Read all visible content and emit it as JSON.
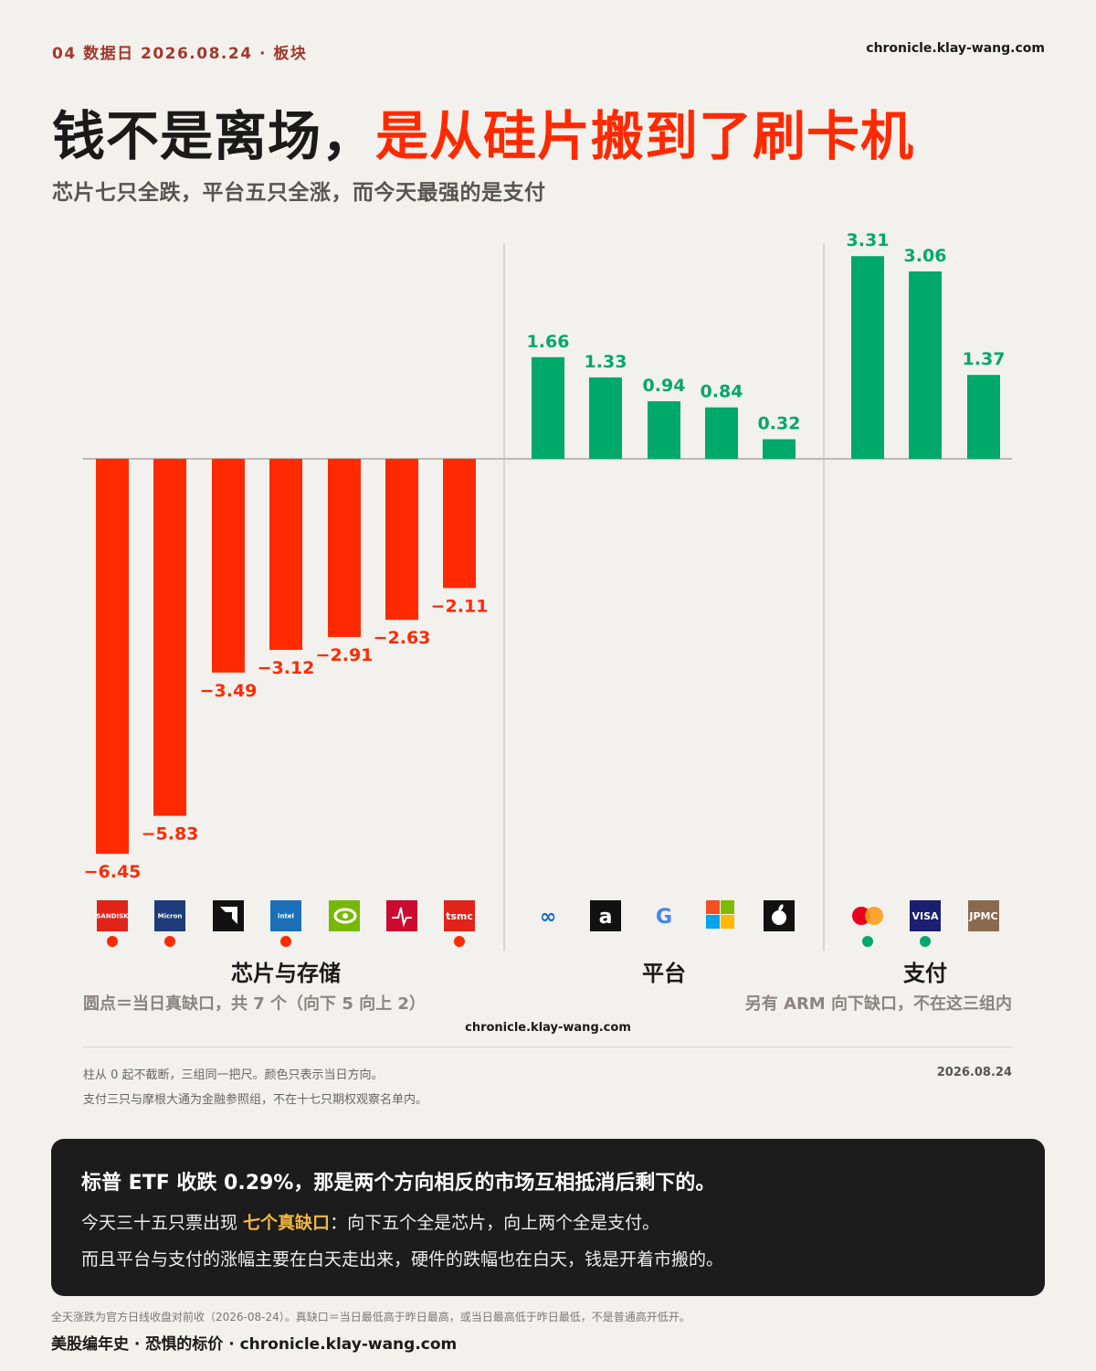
{
  "header": {
    "eyebrow": "04 数据日 2026.08.24 · 板块",
    "site": "chronicle.klay-wang.com",
    "headline_black": "钱不是离场，",
    "headline_red": "是从硅片搬到了刷卡机",
    "subtitle": "芯片七只全跌，平台五只全涨，而今天最强的是支付"
  },
  "colors": {
    "down": "#ff2a00",
    "up": "#00a86b",
    "accent": "#f2b843"
  },
  "chart_data": {
    "type": "bar",
    "groups": [
      {
        "name": "芯片与存储",
        "items": [
          {
            "ticker": "SanDisk",
            "logo_text": "SANDISK",
            "logo_bg": "#e2231a",
            "logo_fg": "#ffffff",
            "value": -6.45,
            "label": "−6.45",
            "true_gap": true
          },
          {
            "ticker": "Micron",
            "logo_text": "Micron",
            "logo_bg": "#1f3c7a",
            "logo_fg": "#ffffff",
            "value": -5.83,
            "label": "−5.83",
            "true_gap": true
          },
          {
            "ticker": "AMD",
            "logo_text": "",
            "logo_bg": "#111111",
            "logo_fg": "#ffffff",
            "value": -3.49,
            "label": "−3.49",
            "true_gap": false
          },
          {
            "ticker": "Intel",
            "logo_text": "intel",
            "logo_bg": "#1b6fb8",
            "logo_fg": "#ffffff",
            "value": -3.12,
            "label": "−3.12",
            "true_gap": true
          },
          {
            "ticker": "NVIDIA",
            "logo_text": "",
            "logo_bg": "#76b900",
            "logo_fg": "#ffffff",
            "value": -2.91,
            "label": "−2.91",
            "true_gap": false
          },
          {
            "ticker": "Broadcom",
            "logo_text": "",
            "logo_bg": "#cc092f",
            "logo_fg": "#ffffff",
            "value": -2.63,
            "label": "−2.63",
            "true_gap": false
          },
          {
            "ticker": "TSMC",
            "logo_text": "tsmc",
            "logo_bg": "#e2231a",
            "logo_fg": "#ffffff",
            "value": -2.11,
            "label": "−2.11",
            "true_gap": true
          }
        ]
      },
      {
        "name": "平台",
        "items": [
          {
            "ticker": "Meta",
            "logo_text": "∞",
            "logo_bg": "transparent",
            "logo_fg": "#0668e1",
            "value": 1.66,
            "label": "1.66",
            "true_gap": false
          },
          {
            "ticker": "Amazon",
            "logo_text": "a",
            "logo_bg": "#111111",
            "logo_fg": "#ffffff",
            "value": 1.33,
            "label": "1.33",
            "true_gap": false
          },
          {
            "ticker": "Google",
            "logo_text": "G",
            "logo_bg": "transparent",
            "logo_fg": "#4285f4",
            "value": 0.94,
            "label": "0.94",
            "true_gap": false
          },
          {
            "ticker": "Microsoft",
            "logo_text": "",
            "logo_bg": "transparent",
            "logo_fg": "#f25022",
            "value": 0.84,
            "label": "0.84",
            "true_gap": false
          },
          {
            "ticker": "Apple",
            "logo_text": "",
            "logo_bg": "#111111",
            "logo_fg": "#ffffff",
            "value": 0.32,
            "label": "0.32",
            "true_gap": false
          }
        ]
      },
      {
        "name": "支付",
        "items": [
          {
            "ticker": "Mastercard",
            "logo_text": "",
            "logo_bg": "transparent",
            "logo_fg": "#eb001b",
            "value": 3.31,
            "label": "3.31",
            "true_gap": true
          },
          {
            "ticker": "Visa",
            "logo_text": "VISA",
            "logo_bg": "#1a1f71",
            "logo_fg": "#ffffff",
            "value": 3.06,
            "label": "3.06",
            "true_gap": true
          },
          {
            "ticker": "JPMorgan",
            "logo_text": "JPMC",
            "logo_bg": "#8a6a4f",
            "logo_fg": "#ffffff",
            "value": 1.37,
            "label": "1.37",
            "true_gap": false
          }
        ]
      }
    ],
    "ylim": [
      -6.45,
      3.31
    ],
    "grid": false
  },
  "notes": {
    "left": "圆点＝当日真缺口，共 7 个（向下 5 向上 2）",
    "right": "另有 ARM 向下缺口，不在这三组内",
    "site_mid": "chronicle.klay-wang.com",
    "fine1": "柱从 0 起不截断，三组同一把尺。颜色只表示当日方向。",
    "fine2": "支付三只与摩根大通为金融参照组，不在十七只期权观察名单内。",
    "date": "2026.08.24"
  },
  "callout": {
    "line1": "标普 ETF 收跌 0.29%，那是两个方向相反的市场互相抵消后剩下的。",
    "line2_pre": "今天三十五只票出现 ",
    "line2_hl": "七个真缺口",
    "line2_post": "：向下五个全是芯片，向上两个全是支付。",
    "line3": "而且平台与支付的涨幅主要在白天走出来，硬件的跌幅也在白天，钱是开着市搬的。"
  },
  "footer": {
    "note": "全天涨跌为官方日线收盘对前收（2026-08-24）。真缺口＝当日最低高于昨日最高，或当日最高低于昨日最低，不是普通高开低开。",
    "brand": "美股编年史 · 恐惧的标价 · chronicle.klay-wang.com"
  }
}
